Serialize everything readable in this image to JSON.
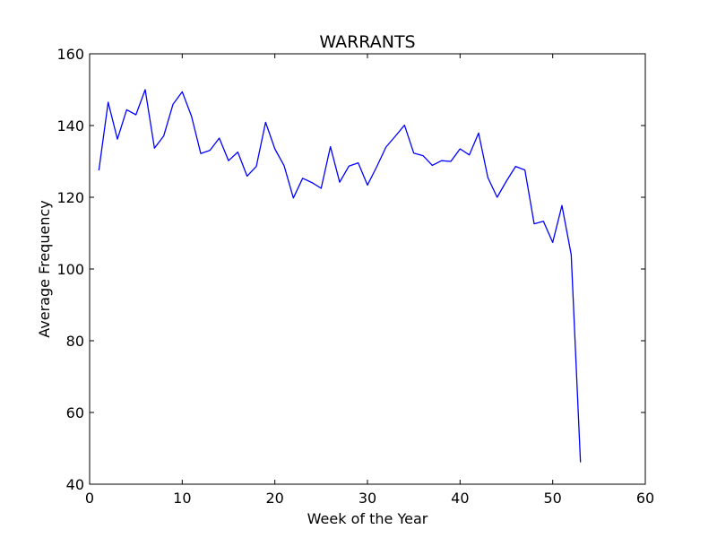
{
  "chart_data": {
    "type": "line",
    "title": "WARRANTS",
    "xlabel": "Week of the Year",
    "ylabel": "Average Frequency",
    "xlim": [
      0,
      60
    ],
    "ylim": [
      40,
      160
    ],
    "xticks": [
      0,
      10,
      20,
      30,
      40,
      50,
      60
    ],
    "yticks": [
      40,
      60,
      80,
      100,
      120,
      140,
      160
    ],
    "grid": false,
    "line_color": "#0000ff",
    "series": [
      {
        "x": [
          1,
          2,
          3,
          4,
          5,
          6,
          7,
          8,
          9,
          10,
          11,
          12,
          13,
          14,
          15,
          16,
          17,
          18,
          19,
          20,
          21,
          22,
          23,
          24,
          25,
          26,
          27,
          28,
          29,
          30,
          31,
          32,
          33,
          34,
          35,
          36,
          37,
          38,
          39,
          40,
          41,
          42,
          43,
          44,
          45,
          46,
          47,
          48,
          49,
          50,
          51,
          52,
          53
        ],
        "values": [
          127.5,
          146.5,
          136.2,
          144.4,
          143.0,
          150.0,
          133.7,
          137.1,
          145.9,
          149.4,
          142.6,
          132.2,
          133.1,
          136.5,
          130.2,
          132.6,
          125.9,
          128.6,
          140.9,
          133.5,
          128.8,
          119.8,
          125.3,
          124.1,
          122.5,
          134.1,
          124.2,
          128.7,
          129.6,
          123.4,
          128.5,
          134.0,
          137.0,
          140.1,
          132.3,
          131.6,
          128.9,
          130.2,
          130.0,
          133.5,
          131.8,
          137.9,
          125.5,
          120.0,
          124.5,
          128.6,
          127.6,
          112.6,
          113.3,
          107.4,
          117.7,
          104.0,
          46.1
        ]
      }
    ]
  }
}
